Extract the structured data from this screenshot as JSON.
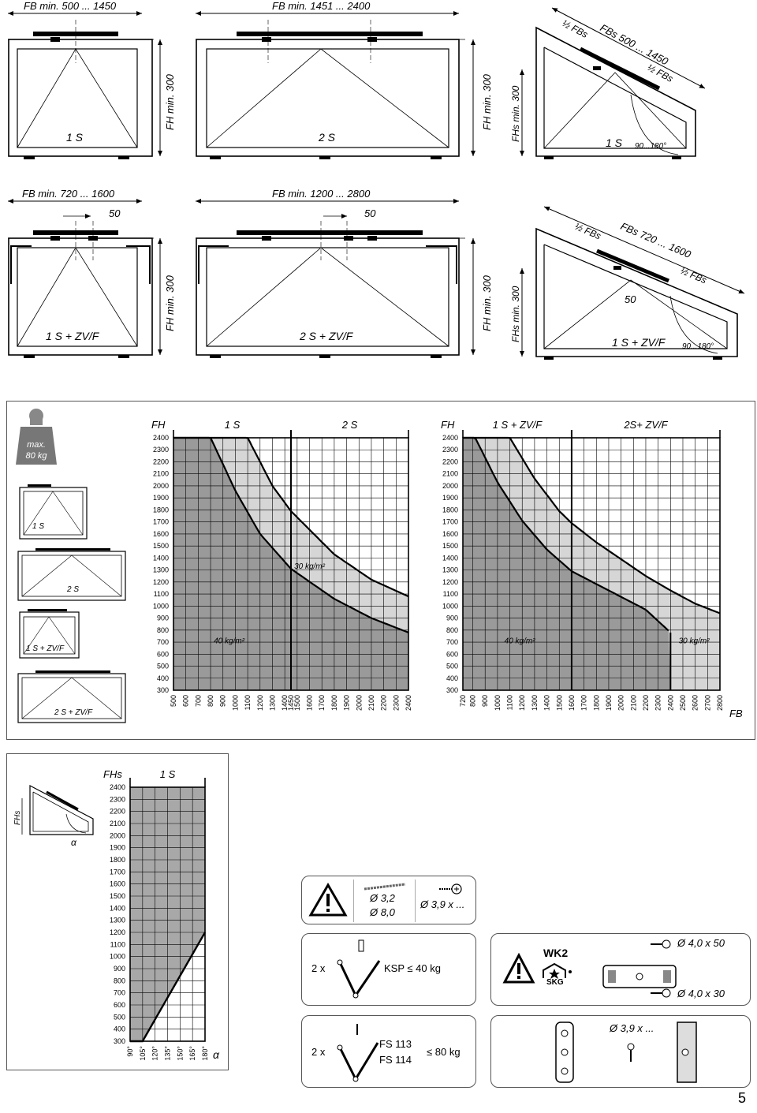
{
  "drawings": {
    "d1": {
      "fb": "FB min. 500 ... 1450",
      "fh": "FH min. 300",
      "label": "1 S"
    },
    "d2": {
      "fb": "FB min. 1451 ... 2400",
      "fh": "FH min. 300",
      "label": "2 S"
    },
    "d3": {
      "half_a": "½ FBs",
      "fbs": "FBs 500 ... 1450",
      "half_b": "½ FBs",
      "fhs": "FHs min. 300",
      "label": "1 S",
      "angle": "90...180°"
    },
    "d4": {
      "fb": "FB min. 720 ... 1600",
      "offset": "50",
      "fh": "FH min. 300",
      "label": "1 S + ZV/F"
    },
    "d5": {
      "fb": "FB min. 1200 ... 2800",
      "offset": "50",
      "fh": "FH min. 300",
      "label": "2 S + ZV/F"
    },
    "d6": {
      "half_a": "½ FBs",
      "fbs": "FBs 720 ... 1600",
      "half_b": "½ FBs",
      "offset": "50",
      "fhs": "FHs min. 300",
      "label": "1 S + ZV/F",
      "angle": "90...180°"
    }
  },
  "weight_badge": {
    "line1": "max.",
    "line2": "80 kg"
  },
  "legend_thumbs": [
    "1 S",
    "2 S",
    "1 S + ZV/F",
    "2 S + ZV/F"
  ],
  "chart_data": [
    {
      "type": "area",
      "y_axis_label": "FH",
      "x_axis_label": "FB",
      "section_labels": [
        "1 S",
        "2 S"
      ],
      "divider_x": 1450,
      "x_ticks": [
        "500",
        "600",
        "700",
        "800",
        "900",
        "1000",
        "1100",
        "1200",
        "1300",
        "1400",
        "1450",
        "1500",
        "1600",
        "1700",
        "1800",
        "1900",
        "2000",
        "2100",
        "2200",
        "2300",
        "2400"
      ],
      "y_ticks": [
        "2400",
        "2300",
        "2200",
        "2100",
        "2000",
        "1900",
        "1800",
        "1700",
        "1600",
        "1500",
        "1400",
        "1300",
        "1200",
        "1100",
        "1000",
        "900",
        "800",
        "700",
        "600",
        "500",
        "400",
        "300"
      ],
      "xlim": [
        500,
        2400
      ],
      "ylim": [
        300,
        2400
      ],
      "series": [
        {
          "name": "40 kg/m²",
          "x": [
            500,
            800,
            1000,
            1200,
            1450,
            1800,
            2100,
            2400
          ],
          "y": [
            2400,
            2400,
            1960,
            1600,
            1310,
            1060,
            900,
            780
          ]
        },
        {
          "name": "30 kg/m²",
          "x": [
            500,
            1100,
            1300,
            1450,
            1800,
            2100,
            2400
          ],
          "y": [
            2400,
            2400,
            2000,
            1790,
            1430,
            1220,
            1080
          ]
        }
      ],
      "annotations": [
        {
          "text": "30 kg/m²",
          "x": 1600,
          "y": 1310
        },
        {
          "text": "40 kg/m²",
          "x": 950,
          "y": 690
        }
      ],
      "grid": true
    },
    {
      "type": "area",
      "y_axis_label": "FH",
      "x_axis_label": "FB",
      "section_labels": [
        "1 S + ZV/F",
        "2S+ ZV/F"
      ],
      "divider_x": 1600,
      "x_ticks": [
        "720",
        "800",
        "900",
        "1000",
        "1100",
        "1200",
        "1300",
        "1400",
        "1500",
        "1600",
        "1700",
        "1800",
        "1900",
        "2000",
        "2100",
        "2200",
        "2300",
        "2400",
        "2500",
        "2600",
        "2700",
        "2800"
      ],
      "y_ticks": [
        "2400",
        "2300",
        "2200",
        "2100",
        "2000",
        "1900",
        "1800",
        "1700",
        "1600",
        "1500",
        "1400",
        "1300",
        "1200",
        "1100",
        "1000",
        "900",
        "800",
        "700",
        "600",
        "500",
        "400",
        "300"
      ],
      "xlim": [
        720,
        2800
      ],
      "ylim": [
        300,
        2400
      ],
      "series": [
        {
          "name": "40 kg/m²",
          "x": [
            720,
            820,
            1000,
            1200,
            1400,
            1600,
            1900,
            2200,
            2400
          ],
          "y": [
            2400,
            2400,
            2030,
            1710,
            1470,
            1290,
            1130,
            970,
            780
          ]
        },
        {
          "name": "30 kg/m²",
          "x": [
            720,
            1100,
            1300,
            1500,
            1600,
            1800,
            2000,
            2200,
            2400,
            2600,
            2800
          ],
          "y": [
            2400,
            2400,
            2060,
            1790,
            1690,
            1530,
            1390,
            1250,
            1130,
            1020,
            940
          ]
        }
      ],
      "annotations": [
        {
          "text": "40 kg/m²",
          "x": 1180,
          "y": 690
        },
        {
          "text": "30 kg/m²",
          "x": 2590,
          "y": 690
        }
      ],
      "grid": true
    },
    {
      "type": "area",
      "y_axis_label": "FHs",
      "x_axis_label": "α",
      "section_labels": [
        "1 S"
      ],
      "x_ticks": [
        "90°",
        "105°",
        "120°",
        "135°",
        "150°",
        "165°",
        "180°"
      ],
      "y_ticks": [
        "2400",
        "2300",
        "2200",
        "2100",
        "2000",
        "1900",
        "1800",
        "1700",
        "1600",
        "1500",
        "1400",
        "1300",
        "1200",
        "1100",
        "1000",
        "900",
        "800",
        "700",
        "600",
        "500",
        "400",
        "300"
      ],
      "xlim": [
        90,
        180
      ],
      "ylim": [
        300,
        2400
      ],
      "series": [
        {
          "name": "",
          "x": [
            90,
            105,
            180
          ],
          "y": [
            300,
            300,
            1200
          ]
        }
      ],
      "grid": true
    }
  ],
  "small_drawing": {
    "fhs": "FHs",
    "alpha": "α"
  },
  "hardware": {
    "drill_a": "Ø 3,2",
    "drill_b": "Ø 8,0",
    "screw_a": "Ø 3,9 x ...",
    "qty_a": "2 x",
    "ksp": "KSP ≤ 40 kg",
    "wk2": "WK2",
    "skg": "SKG",
    "screw_b": "Ø 4,0 x 50",
    "screw_c": "Ø 4,0 x 30",
    "qty_b": "2 x",
    "fs113": "FS 113",
    "fs114": "FS 114",
    "load_b": "≤ 80 kg",
    "screw_d": "Ø 3,9 x ..."
  },
  "page_number": "5"
}
